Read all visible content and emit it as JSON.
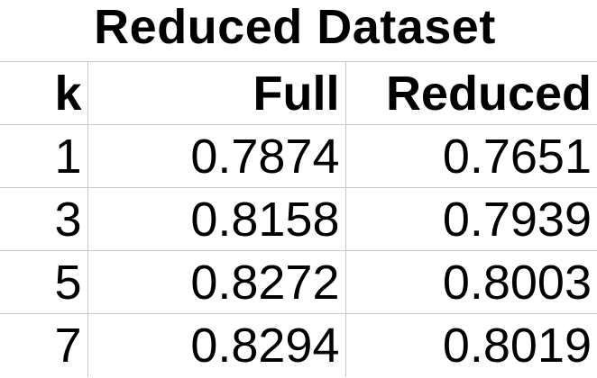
{
  "title": "Reduced Dataset",
  "table": {
    "headers": {
      "k": "k",
      "full": "Full",
      "reduced": "Reduced"
    },
    "rows": [
      {
        "k": "1",
        "full": "0.7874",
        "reduced": "0.7651"
      },
      {
        "k": "3",
        "full": "0.8158",
        "reduced": "0.7939"
      },
      {
        "k": "5",
        "full": "0.8272",
        "reduced": "0.8003"
      },
      {
        "k": "7",
        "full": "0.8294",
        "reduced": "0.8019"
      }
    ]
  }
}
